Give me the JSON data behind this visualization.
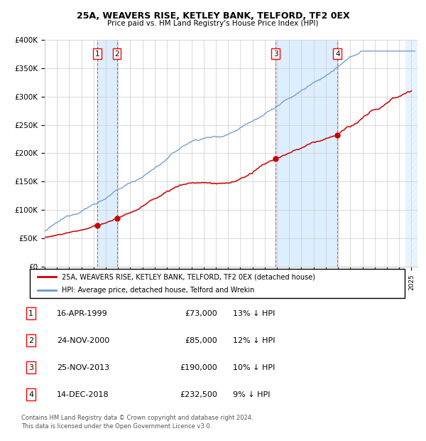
{
  "title": "25A, WEAVERS RISE, KETLEY BANK, TELFORD, TF2 0EX",
  "subtitle": "Price paid vs. HM Land Registry's House Price Index (HPI)",
  "ylim": [
    0,
    400000
  ],
  "yticks": [
    0,
    50000,
    100000,
    150000,
    200000,
    250000,
    300000,
    350000,
    400000
  ],
  "ytick_labels": [
    "£0",
    "£50K",
    "£100K",
    "£150K",
    "£200K",
    "£250K",
    "£300K",
    "£350K",
    "£400K"
  ],
  "xlim_start": 1995.0,
  "xlim_end": 2025.5,
  "sale_dates": [
    1999.29,
    2000.9,
    2013.9,
    2018.95
  ],
  "sale_prices": [
    73000,
    85000,
    190000,
    232500
  ],
  "sale_labels": [
    "1",
    "2",
    "3",
    "4"
  ],
  "sale_date_strs": [
    "16-APR-1999",
    "24-NOV-2000",
    "25-NOV-2013",
    "14-DEC-2018"
  ],
  "sale_hpi_pcts": [
    "13% ↓ HPI",
    "12% ↓ HPI",
    "10% ↓ HPI",
    "9% ↓ HPI"
  ],
  "sale_prices_fmt": [
    "£73,000",
    "£85,000",
    "£190,000",
    "£232,500"
  ],
  "legend_line1": "25A, WEAVERS RISE, KETLEY BANK, TELFORD, TF2 0EX (detached house)",
  "legend_line2": "HPI: Average price, detached house, Telford and Wrekin",
  "footer1": "Contains HM Land Registry data © Crown copyright and database right 2024.",
  "footer2": "This data is licensed under the Open Government Licence v3.0.",
  "red_color": "#cc0000",
  "blue_color": "#6699cc",
  "shade_color": "#ddeeff",
  "bg_color": "#ffffff",
  "grid_color": "#cccccc"
}
